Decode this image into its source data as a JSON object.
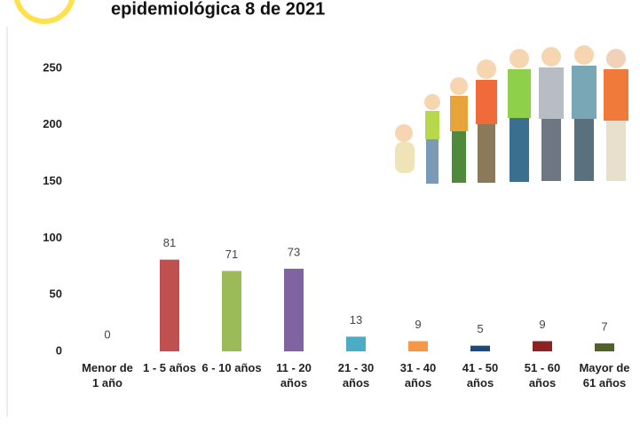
{
  "chart_data": {
    "type": "bar",
    "title": "epidemiológica 8 de 2021",
    "categories": [
      "Menor de 1 año",
      "1 - 5 años",
      "6 - 10 años",
      "11 - 20 años",
      "21 - 30 años",
      "31 - 40 años",
      "41 - 50 años",
      "51 - 60 años",
      "Mayor de 61 años"
    ],
    "values": [
      0,
      81,
      71,
      73,
      13,
      9,
      5,
      9,
      7
    ],
    "colors": [
      "#4472c4",
      "#c0504d",
      "#9bbb59",
      "#8064a2",
      "#4bacc6",
      "#f79646",
      "#1f497d",
      "#8b2323",
      "#4f6228"
    ],
    "ylim": [
      0,
      250
    ],
    "yticks": [
      0,
      50,
      100,
      150,
      200,
      250
    ],
    "grid": false
  }
}
